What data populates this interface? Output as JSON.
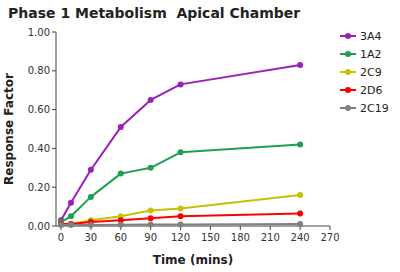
{
  "chart_data": {
    "type": "line",
    "title": "Phase 1 Metabolism  Apical Chamber",
    "x_label": "Time (mins)",
    "y_label": "Response Factor",
    "x": [
      0,
      10,
      30,
      60,
      90,
      120,
      240
    ],
    "series": [
      {
        "name": "3A4",
        "color": "#9B1FBA",
        "values": [
          0.03,
          0.12,
          0.29,
          0.51,
          0.65,
          0.73,
          0.83
        ]
      },
      {
        "name": "1A2",
        "color": "#1EA050",
        "values": [
          0.02,
          0.05,
          0.15,
          0.27,
          0.3,
          0.38,
          0.42
        ]
      },
      {
        "name": "2C9",
        "color": "#C8C000",
        "values": [
          0.01,
          0.01,
          0.03,
          0.05,
          0.08,
          0.09,
          0.16
        ]
      },
      {
        "name": "2D6",
        "color": "#FF0000",
        "values": [
          0.01,
          0.01,
          0.02,
          0.03,
          0.04,
          0.05,
          0.065
        ]
      },
      {
        "name": "2C19",
        "color": "#808080",
        "values": [
          0.005,
          0.005,
          0.005,
          0.007,
          0.008,
          0.008,
          0.01
        ]
      }
    ],
    "xlim": [
      -5,
      270
    ],
    "ylim": [
      0.0,
      1.0
    ],
    "xticks": [
      0,
      30,
      60,
      90,
      120,
      150,
      180,
      210,
      240,
      270
    ],
    "yticks": [
      {
        "value": 0,
        "label": "0.00"
      },
      {
        "value": 0.2,
        "label": "0.20"
      },
      {
        "value": 0.4,
        "label": "0.40"
      },
      {
        "value": 0.6,
        "label": "0.60"
      },
      {
        "value": 0.8,
        "label": "0.80"
      },
      {
        "value": 1.0,
        "label": "1.00"
      }
    ],
    "marker": "circle",
    "grid": false,
    "legend": "right"
  }
}
